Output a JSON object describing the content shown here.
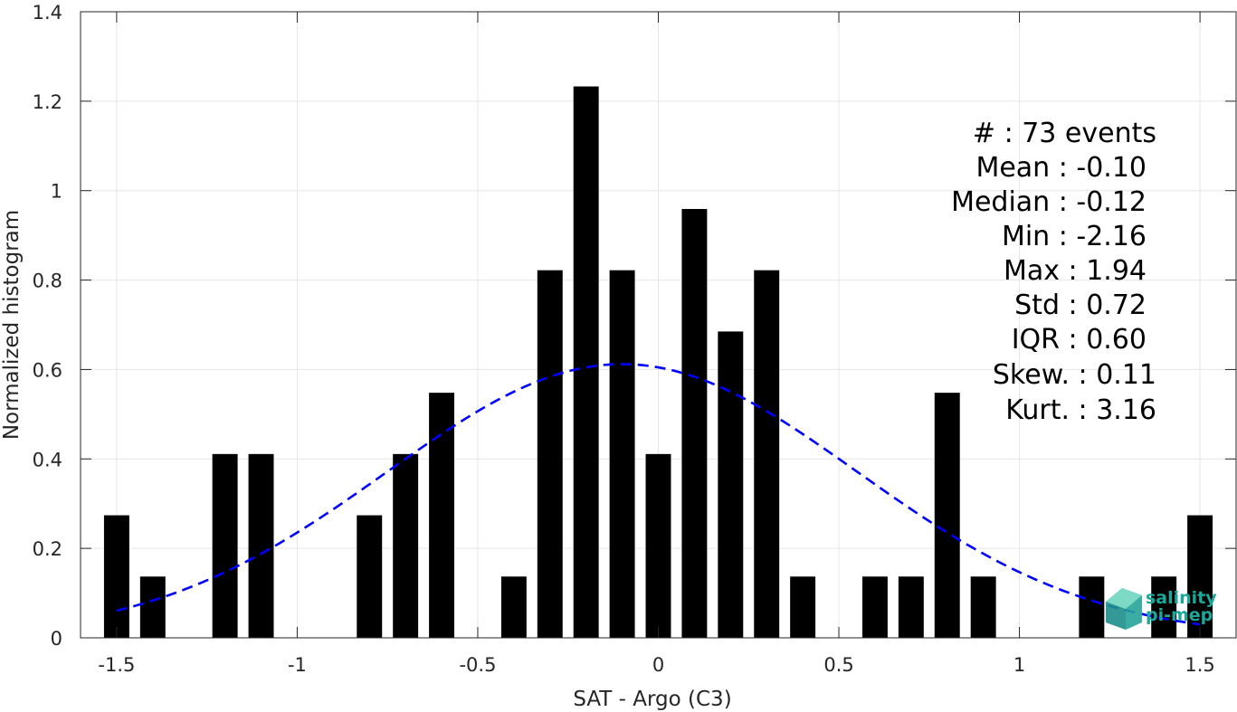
{
  "chart_data": {
    "type": "bar",
    "xlabel": "SAT - Argo (C3)",
    "ylabel": "Normalized histogram",
    "xlim": [
      -1.6,
      1.6
    ],
    "ylim": [
      0,
      1.4
    ],
    "grid": true,
    "xticks": [
      -1.5,
      -1,
      -0.5,
      0,
      0.5,
      1,
      1.5
    ],
    "xtick_labels": [
      "-1.5",
      "-1",
      "-0.5",
      "0",
      "0.5",
      "1",
      "1.5"
    ],
    "yticks": [
      0,
      0.2,
      0.4,
      0.6,
      0.8,
      1,
      1.2,
      1.4
    ],
    "ytick_labels": [
      "0",
      "0.2",
      "0.4",
      "0.6",
      "0.8",
      "1",
      "1.2",
      "1.4"
    ],
    "bar_color": "#000000",
    "bars": {
      "x": [
        -1.5,
        -1.4,
        -1.3,
        -1.2,
        -1.1,
        -1.0,
        -0.9,
        -0.8,
        -0.7,
        -0.6,
        -0.5,
        -0.4,
        -0.3,
        -0.2,
        -0.1,
        0.0,
        0.1,
        0.2,
        0.3,
        0.4,
        0.5,
        0.6,
        0.7,
        0.8,
        0.9,
        1.0,
        1.1,
        1.2,
        1.3,
        1.4,
        1.5
      ],
      "values": [
        0.274,
        0.137,
        0,
        0.411,
        0.411,
        0,
        0,
        0.274,
        0.411,
        0.548,
        0,
        0.137,
        0.822,
        1.233,
        0.822,
        0.411,
        0.959,
        0.685,
        0.822,
        0.137,
        0,
        0.137,
        0.137,
        0.548,
        0.137,
        0,
        0,
        0.137,
        0,
        0.137,
        0.274
      ]
    },
    "fit_curve": {
      "style": "dashed",
      "color": "#0000ff",
      "x_range": [
        -1.5,
        1.5
      ],
      "mean": -0.1,
      "peak": 0.612,
      "sigma": 0.651
    },
    "stats_lines": [
      "#  : 73 events",
      "Mean : -0.10",
      "Median : -0.12",
      "Min : -2.16",
      "Max : 1.94",
      "Std : 0.72",
      "IQR : 0.60",
      "Skew. : 0.11",
      "Kurt. : 3.16"
    ]
  },
  "logo": {
    "line1": "salinity",
    "line2": "pi-mep",
    "color": "#1aa89a"
  }
}
